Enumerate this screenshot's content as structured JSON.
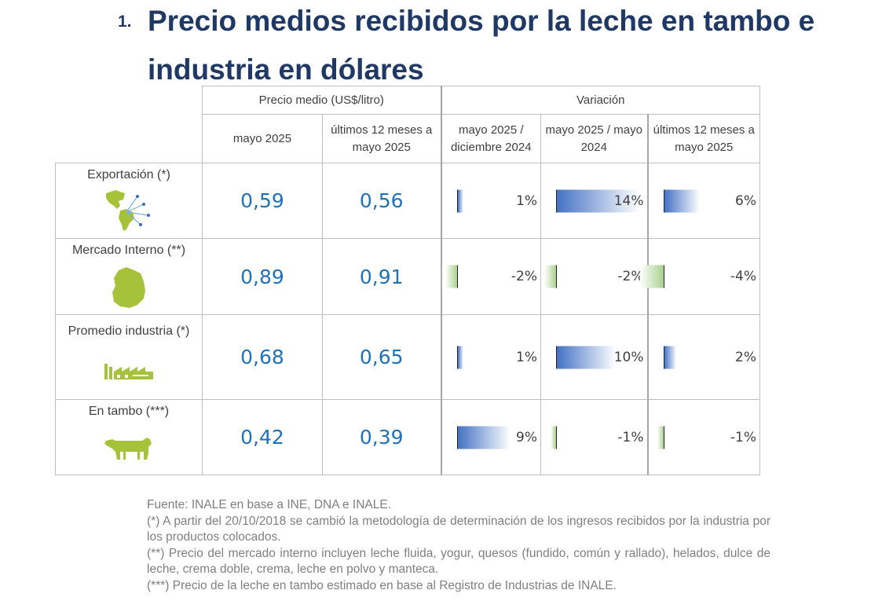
{
  "heading": {
    "number": "1.",
    "title": "Precio medios recibidos por la leche en tambo e industria en dólares"
  },
  "table": {
    "group_price": "Precio medio (US$/litro)",
    "group_variation": "Variación",
    "columns": {
      "c1": "mayo 2025",
      "c2": "últimos 12 meses a mayo 2025",
      "c3": "mayo 2025 / diciembre 2024",
      "c4": "mayo 2025 / mayo 2024",
      "c5": "últimos 12 meses a mayo 2025"
    },
    "rows": [
      {
        "label": "Exportación (*)",
        "icon": "americas-map-icon",
        "price_may": "0,59",
        "price_12m": "0,56",
        "var_dec": "1%",
        "var_dec_value": 1,
        "var_may": "14%",
        "var_may_value": 14,
        "var_12m": "6%",
        "var_12m_value": 6
      },
      {
        "label": "Mercado Interno (**)",
        "icon": "uruguay-map-icon",
        "price_may": "0,89",
        "price_12m": "0,91",
        "var_dec": "-2%",
        "var_dec_value": -2,
        "var_may": "-2%",
        "var_may_value": -2,
        "var_12m": "-4%",
        "var_12m_value": -4
      },
      {
        "label": "Promedio industria (*)",
        "icon": "factory-icon",
        "price_may": "0,68",
        "price_12m": "0,65",
        "var_dec": "1%",
        "var_dec_value": 1,
        "var_may": "10%",
        "var_may_value": 10,
        "var_12m": "2%",
        "var_12m_value": 2
      },
      {
        "label": "En tambo (***)",
        "icon": "cow-icon",
        "price_may": "0,42",
        "price_12m": "0,39",
        "var_dec": "9%",
        "var_dec_value": 9,
        "var_may": "-1%",
        "var_may_value": -1,
        "var_12m": "-1%",
        "var_12m_value": -1
      }
    ]
  },
  "colors": {
    "title": "#1f3864",
    "price": "#1f72b8",
    "bar_positive": "#4472c4",
    "bar_negative": "#a9d08e",
    "icon": "#a5c23a"
  },
  "notes": {
    "source": "Fuente: INALE en base a INE, DNA e INALE.",
    "note1": "(*) A partir del 20/10/2018 se cambió la metodología de determinación de los ingresos recibidos por la industria por los productos colocados.",
    "note2": "(**) Precio del mercado interno incluyen leche fluida, yogur, quesos (fundido, común y rallado), helados, dulce de leche, crema doble, crema, leche en polvo y manteca.",
    "note3": "(***) Precio de la leche en tambo estimado en base al Registro de Industrias de INALE."
  }
}
